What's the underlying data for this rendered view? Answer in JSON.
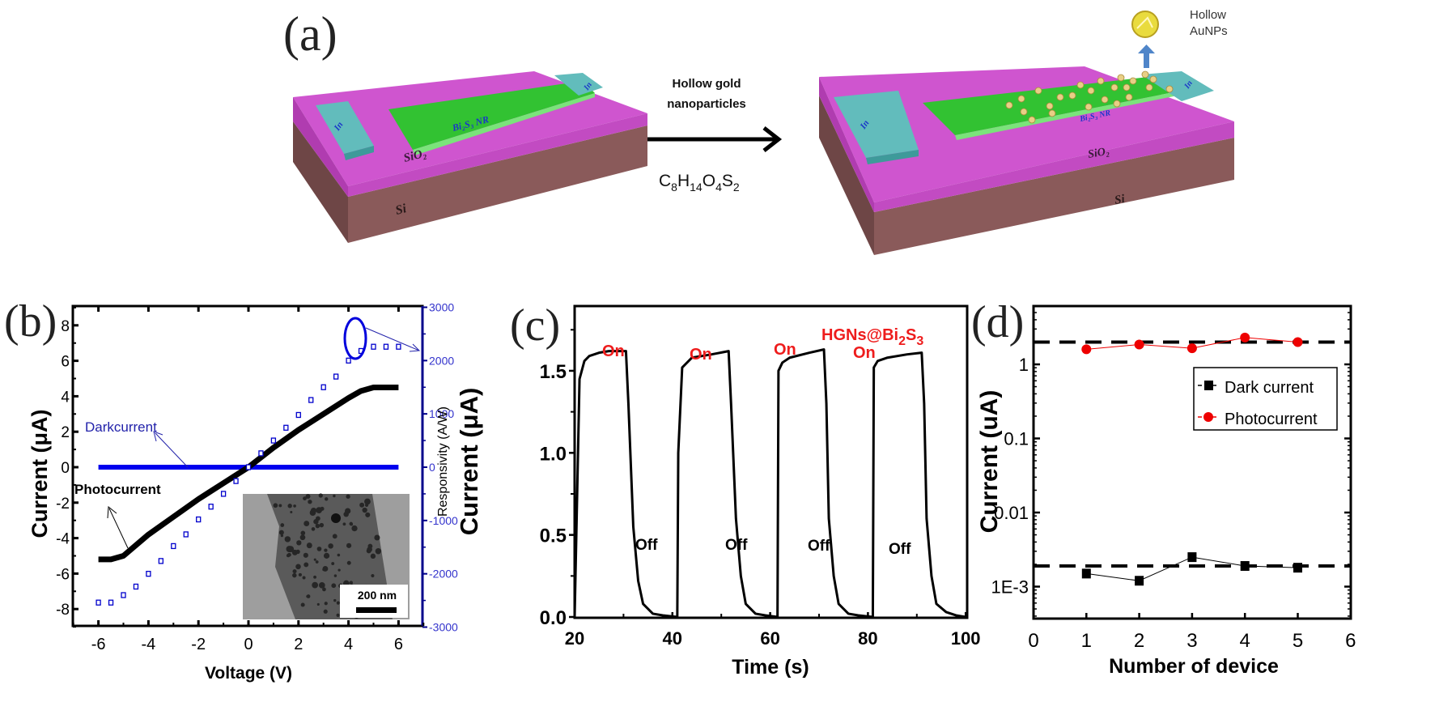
{
  "panel_a": {
    "label": "(a)",
    "arrow_top_line1": "Hollow gold",
    "arrow_top_line2": "nanoparticles",
    "reagent": {
      "C": "C",
      "c_sub": "8",
      "H": "H",
      "h_sub": "14",
      "O": "O",
      "o_sub": "4",
      "S": "S",
      "s_sub": "2"
    },
    "left_device": {
      "nanorod": "Bi₂S₃ NR",
      "contact_left": "In",
      "contact_right": "In",
      "oxide": "SiO₂",
      "substrate": "Si"
    },
    "right_device": {
      "nanorod": "Bi₂S₃ NR",
      "contact_left": "In",
      "contact_right": "In",
      "oxide": "SiO₂",
      "substrate": "Si"
    },
    "particle_label_line1": "Hollow",
    "particle_label_line2": "AuNPs",
    "colors": {
      "oxide": "#c94fc9",
      "substrate": "#7a4f4f",
      "nanorod": "#33c233",
      "contact": "#5fb8b8",
      "particle": "#e6c96a",
      "label": "#1a36c9"
    }
  },
  "panel_b": {
    "label": "(b)",
    "inset_scale": "200 nm",
    "annot_dark": "Darkcurrent",
    "annot_photo": "Photocurrent"
  },
  "panel_c": {
    "label": "(c)",
    "sample_label": "HGNs@Bi",
    "sample_sub1": "2",
    "sample_S": "S",
    "sample_sub2": "3",
    "on_label": "On",
    "off_label": "Off"
  },
  "panel_d": {
    "label": "(d)"
  },
  "chart_data": [
    {
      "id": "b",
      "type": "line",
      "title": "",
      "xlabel": "Voltage (V)",
      "ylabel": "Current (μA)",
      "y2label": "Responsivity (A/W)",
      "xlim": [
        -7,
        7
      ],
      "ylim": [
        -9,
        9
      ],
      "y2lim": [
        -3000,
        3000
      ],
      "xticks": [
        "-6",
        "-4",
        "-2",
        "0",
        "2",
        "4",
        "6"
      ],
      "yticks": [
        "-8",
        "-6",
        "-4",
        "-2",
        "0",
        "2",
        "4",
        "6",
        "8"
      ],
      "y2ticks": [
        "-3000",
        "-2000",
        "-1000",
        "0",
        "1000",
        "2000",
        "3000"
      ],
      "series": [
        {
          "name": "Photocurrent",
          "axis": "left",
          "color": "#000000",
          "x": [
            -6,
            -5.5,
            -5,
            -4,
            -3,
            -2,
            -1,
            0,
            1,
            2,
            3,
            4,
            4.5,
            5,
            6
          ],
          "y": [
            -5.2,
            -5.2,
            -5.0,
            -3.8,
            -2.8,
            -1.8,
            -0.9,
            0,
            1.1,
            2.1,
            3.0,
            3.9,
            4.3,
            4.5,
            4.5
          ]
        },
        {
          "name": "Darkcurrent",
          "axis": "left",
          "color": "#0000ee",
          "x": [
            -6,
            6
          ],
          "y": [
            0,
            0
          ]
        },
        {
          "name": "Responsivity",
          "axis": "right",
          "color": "#0000cc",
          "marker": "open-square",
          "x": [
            -6,
            -5.5,
            -5,
            -4.5,
            -4,
            -3.5,
            -3,
            -2.5,
            -2,
            -1.5,
            -1,
            -0.5,
            0,
            0.5,
            1,
            1.5,
            2,
            2.5,
            3,
            3.5,
            4,
            4.5,
            5,
            5.5,
            6
          ],
          "y": [
            -2540,
            -2540,
            -2400,
            -2240,
            -2000,
            -1760,
            -1480,
            -1260,
            -980,
            -740,
            -500,
            -260,
            0,
            260,
            500,
            740,
            980,
            1260,
            1500,
            1700,
            2000,
            2180,
            2260,
            2260,
            2260
          ]
        }
      ],
      "annotations": [
        "Darkcurrent",
        "Photocurrent",
        "200 nm"
      ]
    },
    {
      "id": "c",
      "type": "line",
      "xlabel": "Time (s)",
      "ylabel": "Current (μA)",
      "xlim": [
        20,
        100
      ],
      "ylim": [
        0,
        1.9
      ],
      "xticks": [
        "20",
        "40",
        "60",
        "80",
        "100"
      ],
      "yticks": [
        "0.0",
        "0.5",
        "1.0",
        "1.5"
      ],
      "series": [
        {
          "name": "HGNs@Bi2S3",
          "color": "#000000",
          "x": [
            20,
            21,
            22,
            23,
            25,
            27,
            30.5,
            31,
            32,
            33,
            34,
            36,
            38,
            41,
            41.2,
            42,
            44,
            48,
            51.5,
            52,
            53,
            54,
            55,
            57,
            59,
            61.5,
            61.7,
            62.5,
            64,
            68,
            71,
            71.5,
            72,
            73,
            74,
            76,
            78,
            81,
            81.2,
            82,
            84,
            88,
            91,
            91.5,
            92,
            93,
            94,
            96,
            98,
            100
          ],
          "y": [
            0,
            1.45,
            1.56,
            1.59,
            1.61,
            1.62,
            1.62,
            1.3,
            0.55,
            0.22,
            0.08,
            0.02,
            0.01,
            0.0,
            1.0,
            1.52,
            1.58,
            1.6,
            1.62,
            1.3,
            0.6,
            0.25,
            0.08,
            0.02,
            0.01,
            0.0,
            1.5,
            1.55,
            1.58,
            1.61,
            1.63,
            1.3,
            0.6,
            0.25,
            0.08,
            0.02,
            0.01,
            0.0,
            1.52,
            1.56,
            1.58,
            1.6,
            1.61,
            1.3,
            0.6,
            0.25,
            0.08,
            0.03,
            0.01,
            0.0
          ]
        }
      ],
      "annotations": [
        "On",
        "On",
        "On",
        "On",
        "Off",
        "Off",
        "Off",
        "Off",
        "HGNs@Bi2S3"
      ]
    },
    {
      "id": "d",
      "type": "scatter",
      "xlabel": "Number of device",
      "ylabel": "Current (uA)",
      "xlim": [
        0,
        6
      ],
      "yscale": "log",
      "ylim": [
        0.0003,
        4
      ],
      "xticks": [
        "0",
        "1",
        "2",
        "3",
        "4",
        "5",
        "6"
      ],
      "yticks": [
        "1E-3",
        "0.01",
        "0.1",
        "1"
      ],
      "legend": {
        "position": "upper-right",
        "entries": [
          "Dark current",
          "Photocurrent"
        ]
      },
      "series": [
        {
          "name": "Dark current",
          "color": "#000000",
          "marker": "square",
          "x": [
            1,
            2,
            3,
            4,
            5
          ],
          "y": [
            0.0015,
            0.0012,
            0.0025,
            0.0019,
            0.0018
          ]
        },
        {
          "name": "Photocurrent",
          "color": "#ff0000",
          "marker": "circle",
          "x": [
            1,
            2,
            3,
            4,
            5
          ],
          "y": [
            1.6,
            1.85,
            1.65,
            2.3,
            2.0
          ]
        }
      ],
      "reference_lines": [
        {
          "y": 2.0,
          "style": "dashed"
        },
        {
          "y": 0.0019,
          "style": "dashed"
        }
      ]
    }
  ]
}
